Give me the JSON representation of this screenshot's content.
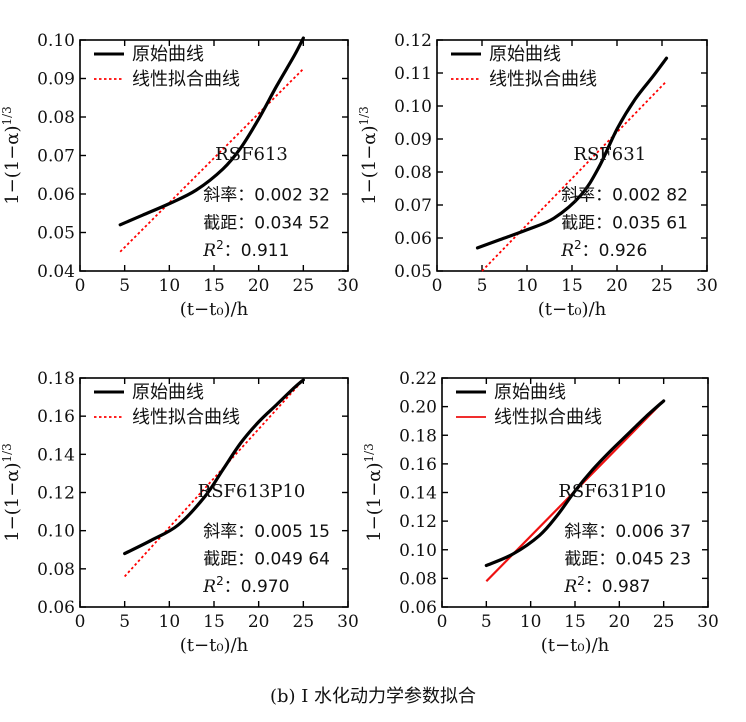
{
  "caption": "(b) I 水化动力学参数拟合",
  "legend_labels": [
    "原始曲线",
    "线性拟合曲线"
  ],
  "chart_data": [
    {
      "type": "line",
      "annotation": "RSF613",
      "fit_text": {
        "slope": "斜率：0.002 32",
        "intercept": "截距：0.034 52",
        "r2_value": "：0.911"
      },
      "xlabel": "(t−t₀)/h",
      "ylabel": "1−(1−α)^1/3",
      "xlim": [
        0,
        30
      ],
      "ylim": [
        0.04,
        0.1
      ],
      "xticks": [
        0,
        5,
        10,
        15,
        20,
        25,
        30
      ],
      "yticks": [
        "0.04",
        "0.05",
        "0.06",
        "0.07",
        "0.08",
        "0.09",
        "0.10"
      ],
      "legend": "top-left",
      "fit_color": "#ff0000",
      "fit_dash": true,
      "series": [
        {
          "name": "原始曲线",
          "x": [
            4.5,
            7,
            10,
            13,
            16,
            18,
            20,
            22,
            24,
            25
          ],
          "y": [
            0.052,
            0.0545,
            0.0575,
            0.061,
            0.0665,
            0.072,
            0.0795,
            0.088,
            0.096,
            0.1005
          ]
        },
        {
          "name": "线性拟合曲线",
          "x": [
            4.5,
            25
          ],
          "y": [
            0.045,
            0.0925
          ]
        }
      ]
    },
    {
      "type": "line",
      "annotation": "RSF631",
      "fit_text": {
        "slope": "斜率：0.002 82",
        "intercept": "截距：0.035 61",
        "r2_value": "：0.926"
      },
      "xlabel": "(t−t₀)/h",
      "ylabel": "1−(1−α)^1/3",
      "xlim": [
        0,
        30
      ],
      "ylim": [
        0.05,
        0.12
      ],
      "xticks": [
        0,
        5,
        10,
        15,
        20,
        25,
        30
      ],
      "yticks": [
        "0.05",
        "0.06",
        "0.07",
        "0.08",
        "0.09",
        "0.10",
        "0.11",
        "0.12"
      ],
      "legend": "top-left",
      "fit_color": "#ff0000",
      "fit_dash": true,
      "series": [
        {
          "name": "原始曲线",
          "x": [
            4.5,
            7,
            10,
            13,
            16,
            18,
            20,
            22,
            24,
            25.5
          ],
          "y": [
            0.057,
            0.0595,
            0.0625,
            0.066,
            0.073,
            0.0815,
            0.093,
            0.102,
            0.109,
            0.1145
          ]
        },
        {
          "name": "线性拟合曲线",
          "x": [
            5,
            25.5
          ],
          "y": [
            0.05,
            0.1075
          ]
        }
      ]
    },
    {
      "type": "line",
      "annotation": "RSF613P10",
      "fit_text": {
        "slope": "斜率：0.005 15",
        "intercept": "截距：0.049 64",
        "r2_value": "：0.970"
      },
      "xlabel": "(t−t₀)/h",
      "ylabel": "1−(1−α)^1/3",
      "xlim": [
        0,
        30
      ],
      "ylim": [
        0.06,
        0.18
      ],
      "xticks": [
        0,
        5,
        10,
        15,
        20,
        25,
        30
      ],
      "yticks": [
        "0.06",
        "0.08",
        "0.10",
        "0.12",
        "0.14",
        "0.16",
        "0.18"
      ],
      "legend": "top-left",
      "fit_color": "#ff0000",
      "fit_dash": true,
      "series": [
        {
          "name": "原始曲线",
          "x": [
            5,
            8,
            11,
            14,
            16,
            18,
            20,
            22,
            24,
            25
          ],
          "y": [
            0.088,
            0.095,
            0.103,
            0.118,
            0.132,
            0.146,
            0.157,
            0.166,
            0.175,
            0.179
          ]
        },
        {
          "name": "线性拟合曲线",
          "x": [
            5,
            25
          ],
          "y": [
            0.076,
            0.179
          ]
        }
      ]
    },
    {
      "type": "line",
      "annotation": "RSF631P10",
      "fit_text": {
        "slope": "斜率：0.006 37",
        "intercept": "截距：0.045 23",
        "r2_value": "：0.987"
      },
      "xlabel": "(t−t₀)/h",
      "ylabel": "1−(1−α)^1/3",
      "xlim": [
        0,
        30
      ],
      "ylim": [
        0.06,
        0.22
      ],
      "xticks": [
        0,
        5,
        10,
        15,
        20,
        25,
        30
      ],
      "yticks": [
        "0.06",
        "0.08",
        "0.10",
        "0.12",
        "0.14",
        "0.16",
        "0.18",
        "0.20",
        "0.22"
      ],
      "legend": "top-left",
      "fit_color": "#ee1111",
      "fit_dash": false,
      "series": [
        {
          "name": "原始曲线",
          "x": [
            5,
            8,
            11,
            13,
            15,
            17,
            19,
            21,
            23,
            25
          ],
          "y": [
            0.089,
            0.097,
            0.11,
            0.124,
            0.141,
            0.156,
            0.169,
            0.181,
            0.193,
            0.204
          ]
        },
        {
          "name": "线性拟合曲线",
          "x": [
            5,
            25
          ],
          "y": [
            0.078,
            0.204
          ]
        }
      ]
    }
  ]
}
